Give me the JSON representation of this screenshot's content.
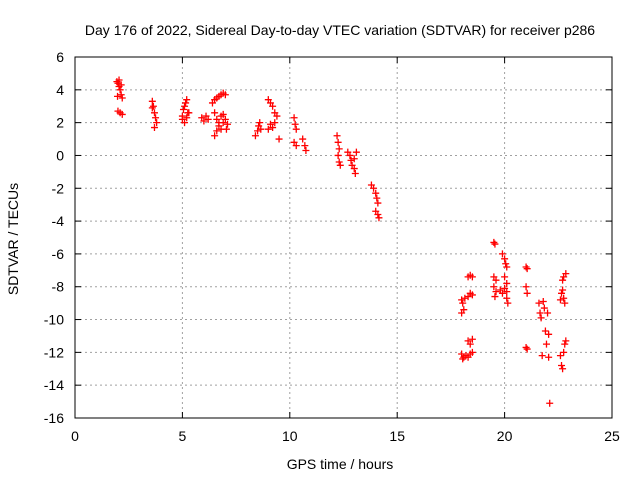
{
  "chart_data": {
    "type": "scatter",
    "title": "Day 176 of 2022, Sidereal Day-to-day VTEC variation (SDTVAR) for receiver p286",
    "xlabel": "GPS time / hours",
    "ylabel": "SDTVAR / TECUs",
    "xlim": [
      0,
      25
    ],
    "ylim": [
      -16,
      6
    ],
    "xticks": [
      0,
      5,
      10,
      15,
      20,
      25
    ],
    "yticks": [
      -16,
      -14,
      -12,
      -10,
      -8,
      -6,
      -4,
      -2,
      0,
      2,
      4,
      6
    ],
    "xtick_labels": [
      "0",
      "5",
      "10",
      "15",
      "20",
      "25"
    ],
    "ytick_labels": [
      "-16",
      "-14",
      "-12",
      "-10",
      "-8",
      "-6",
      "-4",
      "-2",
      "0",
      "2",
      "4",
      "6"
    ],
    "grid": true,
    "marker": "+",
    "color": "#ff0000",
    "series": [
      {
        "name": "SDTVAR",
        "points": [
          [
            1.95,
            4.5
          ],
          [
            2.0,
            4.4
          ],
          [
            2.05,
            4.2
          ],
          [
            2.1,
            4.0
          ],
          [
            2.15,
            3.7
          ],
          [
            2.2,
            3.5
          ],
          [
            1.98,
            3.6
          ],
          [
            2.05,
            4.6
          ],
          [
            2.15,
            4.3
          ],
          [
            2.0,
            2.7
          ],
          [
            2.1,
            2.6
          ],
          [
            2.2,
            2.5
          ],
          [
            3.6,
            3.3
          ],
          [
            3.65,
            3.0
          ],
          [
            3.7,
            2.6
          ],
          [
            3.75,
            2.3
          ],
          [
            3.8,
            2.0
          ],
          [
            3.7,
            1.7
          ],
          [
            3.6,
            2.9
          ],
          [
            5.0,
            2.4
          ],
          [
            5.05,
            2.8
          ],
          [
            5.1,
            3.0
          ],
          [
            5.15,
            3.2
          ],
          [
            5.2,
            3.4
          ],
          [
            5.25,
            2.6
          ],
          [
            5.0,
            2.2
          ],
          [
            5.1,
            2.0
          ],
          [
            5.2,
            2.3
          ],
          [
            5.3,
            2.6
          ],
          [
            5.9,
            2.3
          ],
          [
            6.0,
            2.1
          ],
          [
            6.1,
            2.4
          ],
          [
            6.2,
            2.2
          ],
          [
            6.4,
            3.2
          ],
          [
            6.5,
            3.4
          ],
          [
            6.6,
            3.5
          ],
          [
            6.7,
            3.6
          ],
          [
            6.8,
            3.7
          ],
          [
            6.9,
            3.8
          ],
          [
            7.0,
            3.7
          ],
          [
            6.5,
            2.6
          ],
          [
            6.6,
            2.2
          ],
          [
            6.7,
            2.0
          ],
          [
            6.8,
            2.4
          ],
          [
            6.9,
            2.5
          ],
          [
            7.0,
            2.2
          ],
          [
            6.5,
            1.2
          ],
          [
            6.6,
            1.5
          ],
          [
            6.7,
            1.8
          ],
          [
            6.8,
            1.6
          ],
          [
            6.9,
            2.0
          ],
          [
            7.05,
            1.6
          ],
          [
            7.1,
            1.9
          ],
          [
            8.4,
            1.2
          ],
          [
            8.5,
            1.5
          ],
          [
            8.55,
            1.8
          ],
          [
            8.6,
            2.0
          ],
          [
            8.65,
            1.6
          ],
          [
            9.0,
            3.4
          ],
          [
            9.1,
            3.2
          ],
          [
            9.2,
            3.0
          ],
          [
            9.3,
            2.6
          ],
          [
            9.4,
            2.4
          ],
          [
            9.0,
            1.6
          ],
          [
            9.1,
            1.9
          ],
          [
            9.2,
            1.7
          ],
          [
            9.3,
            2.0
          ],
          [
            9.5,
            1.0
          ],
          [
            10.2,
            2.3
          ],
          [
            10.25,
            1.9
          ],
          [
            10.3,
            1.6
          ],
          [
            10.2,
            0.8
          ],
          [
            10.3,
            0.6
          ],
          [
            10.6,
            1.0
          ],
          [
            10.7,
            0.6
          ],
          [
            10.75,
            0.3
          ],
          [
            12.2,
            1.2
          ],
          [
            12.25,
            0.8
          ],
          [
            12.3,
            0.4
          ],
          [
            12.25,
            0.0
          ],
          [
            12.3,
            -0.4
          ],
          [
            12.35,
            -0.6
          ],
          [
            12.7,
            0.2
          ],
          [
            12.8,
            0.0
          ],
          [
            12.85,
            -0.3
          ],
          [
            12.9,
            -0.6
          ],
          [
            13.0,
            -0.8
          ],
          [
            13.05,
            -1.1
          ],
          [
            13.1,
            0.2
          ],
          [
            13.0,
            -0.2
          ],
          [
            13.8,
            -1.8
          ],
          [
            13.9,
            -2.0
          ],
          [
            14.0,
            -2.3
          ],
          [
            14.05,
            -2.6
          ],
          [
            14.1,
            -2.9
          ],
          [
            14.0,
            -3.4
          ],
          [
            14.1,
            -3.6
          ],
          [
            14.15,
            -3.8
          ],
          [
            18.0,
            -8.8
          ],
          [
            18.05,
            -9.0
          ],
          [
            18.1,
            -9.4
          ],
          [
            18.0,
            -9.6
          ],
          [
            18.15,
            -8.7
          ],
          [
            18.0,
            -12.1
          ],
          [
            18.1,
            -12.3
          ],
          [
            18.2,
            -12.2
          ],
          [
            18.05,
            -12.4
          ],
          [
            18.3,
            -7.4
          ],
          [
            18.4,
            -7.3
          ],
          [
            18.5,
            -7.4
          ],
          [
            18.3,
            -8.6
          ],
          [
            18.4,
            -8.4
          ],
          [
            18.5,
            -8.5
          ],
          [
            18.3,
            -11.3
          ],
          [
            18.4,
            -11.5
          ],
          [
            18.5,
            -11.2
          ],
          [
            18.3,
            -12.3
          ],
          [
            18.4,
            -12.1
          ],
          [
            18.5,
            -12.0
          ],
          [
            19.5,
            -5.3
          ],
          [
            19.55,
            -5.4
          ],
          [
            19.5,
            -7.4
          ],
          [
            19.6,
            -7.6
          ],
          [
            19.5,
            -8.0
          ],
          [
            19.6,
            -8.3
          ],
          [
            19.55,
            -8.6
          ],
          [
            19.8,
            -8.2
          ],
          [
            19.9,
            -8.4
          ],
          [
            20.0,
            -8.1
          ],
          [
            20.1,
            -8.3
          ],
          [
            19.9,
            -6.0
          ],
          [
            20.0,
            -6.3
          ],
          [
            20.05,
            -6.6
          ],
          [
            20.1,
            -6.8
          ],
          [
            20.0,
            -7.4
          ],
          [
            20.1,
            -7.8
          ],
          [
            20.1,
            -8.7
          ],
          [
            20.15,
            -9.0
          ],
          [
            21.0,
            -6.8
          ],
          [
            21.05,
            -6.9
          ],
          [
            21.0,
            -8.0
          ],
          [
            21.05,
            -8.4
          ],
          [
            21.0,
            -11.7
          ],
          [
            21.05,
            -11.8
          ],
          [
            21.6,
            -9.0
          ],
          [
            21.65,
            -9.6
          ],
          [
            21.7,
            -9.9
          ],
          [
            21.75,
            -12.2
          ],
          [
            21.8,
            -8.9
          ],
          [
            21.85,
            -9.3
          ],
          [
            21.9,
            -10.7
          ],
          [
            21.95,
            -11.5
          ],
          [
            22.0,
            -9.6
          ],
          [
            22.05,
            -10.9
          ],
          [
            22.05,
            -12.3
          ],
          [
            22.1,
            -15.1
          ],
          [
            22.6,
            -12.2
          ],
          [
            22.65,
            -12.8
          ],
          [
            22.7,
            -13.0
          ],
          [
            22.75,
            -12.0
          ],
          [
            22.8,
            -11.5
          ],
          [
            22.6,
            -8.8
          ],
          [
            22.65,
            -8.4
          ],
          [
            22.7,
            -8.2
          ],
          [
            22.75,
            -8.7
          ],
          [
            22.8,
            -9.0
          ],
          [
            22.7,
            -7.6
          ],
          [
            22.75,
            -7.4
          ],
          [
            22.85,
            -7.2
          ],
          [
            22.85,
            -11.3
          ]
        ]
      }
    ]
  }
}
